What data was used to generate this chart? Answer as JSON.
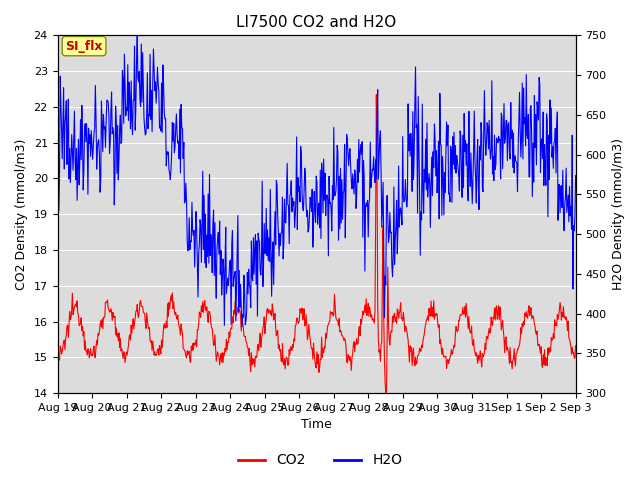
{
  "title": "LI7500 CO2 and H2O",
  "xlabel": "Time",
  "ylabel_left": "CO2 Density (mmol/m3)",
  "ylabel_right": "H2O Density (mmol/m3)",
  "ylim_left": [
    14.0,
    24.0
  ],
  "ylim_right": [
    300,
    750
  ],
  "yticks_left": [
    14.0,
    15.0,
    16.0,
    17.0,
    18.0,
    19.0,
    20.0,
    21.0,
    22.0,
    23.0,
    24.0
  ],
  "yticks_right": [
    300,
    350,
    400,
    450,
    500,
    550,
    600,
    650,
    700,
    750
  ],
  "xtick_labels": [
    "Aug 19",
    "Aug 20",
    "Aug 21",
    "Aug 22",
    "Aug 23",
    "Aug 24",
    "Aug 25",
    "Aug 26",
    "Aug 27",
    "Aug 28",
    "Aug 29",
    "Aug 30",
    "Aug 31",
    "Sep 1",
    "Sep 2",
    "Sep 3"
  ],
  "co2_color": "#ff0000",
  "h2o_color": "#0000ff",
  "bg_color": "#dcdcdc",
  "grid_color": "#ffffff",
  "annotation_text": "SI_flx",
  "annotation_color": "#cc0000",
  "annotation_bg": "#ffff99",
  "legend_labels": [
    "CO2",
    "H2O"
  ],
  "line_width": 0.8,
  "title_fontsize": 11,
  "axis_label_fontsize": 9,
  "tick_fontsize": 8
}
